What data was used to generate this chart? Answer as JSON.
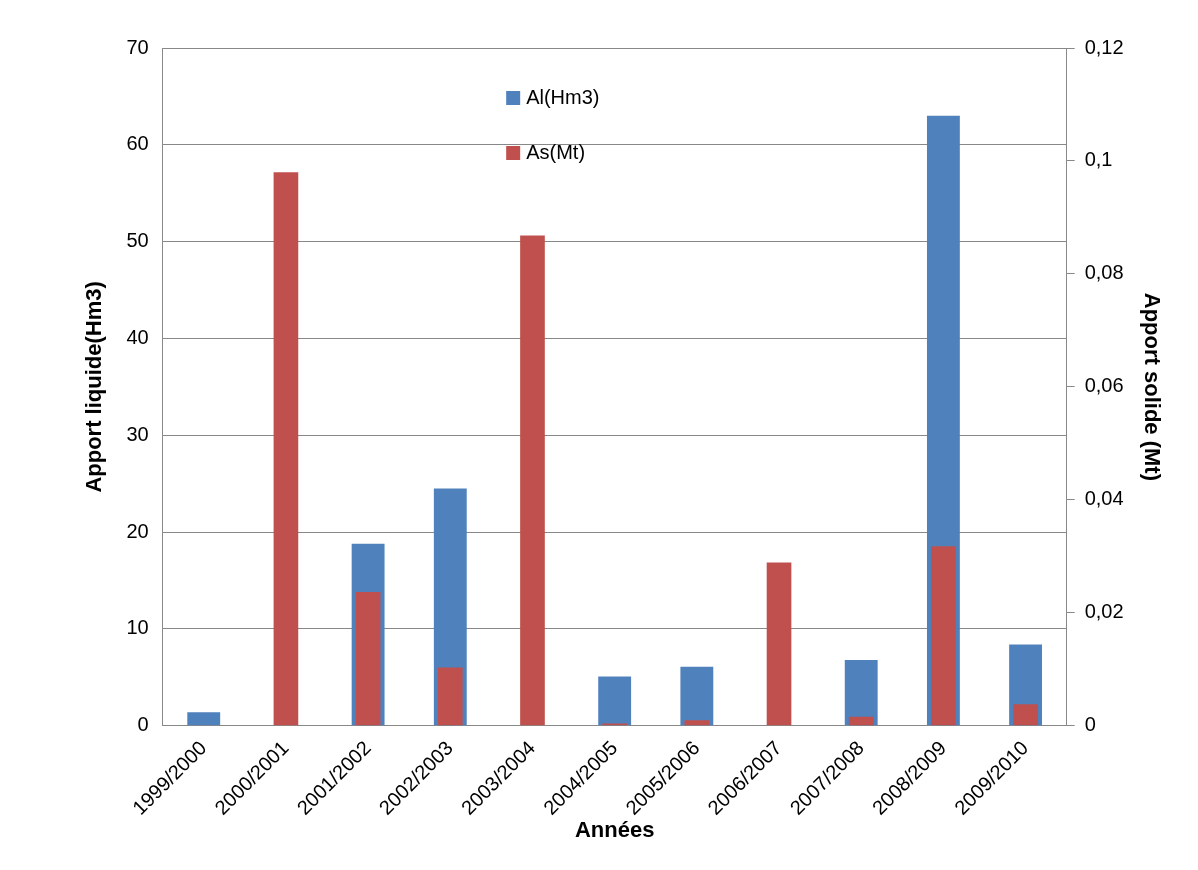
{
  "chart_data": {
    "type": "bar",
    "xlabel": "Années",
    "ylabel": "Apport liquide(Hm3)",
    "y2label": "Apport solide (Mt)",
    "categories": [
      "1999/2000",
      "2000/2001",
      "2001/2002",
      "2002/2003",
      "2003/2004",
      "2004/2005",
      "2005/2006",
      "2006/2007",
      "2007/2008",
      "2008/2009",
      "2009/2010"
    ],
    "series": [
      {
        "name": "Al(Hm3)",
        "color": "#4f81bd",
        "values": [
          1.4,
          null,
          18.8,
          24.5,
          null,
          5.1,
          6.1,
          null,
          6.8,
          63.0,
          8.4
        ]
      },
      {
        "name": "As(Mt)",
        "color": "#c0504d",
        "axis": "y2",
        "values": [
          0,
          0.098,
          0.0237,
          0.0103,
          0.0868,
          0.0004,
          0.001,
          0.0289,
          0.0016,
          0.0318,
          0.0038
        ]
      }
    ],
    "ylim": [
      0,
      70
    ],
    "yticks": [
      0,
      10,
      20,
      30,
      40,
      50,
      60,
      70
    ],
    "y2lim": [
      0,
      0.12
    ],
    "y2ticks": [
      {
        "value": 0,
        "label": "0"
      },
      {
        "value": 0.02,
        "label": "0,02"
      },
      {
        "value": 0.04,
        "label": "0,04"
      },
      {
        "value": 0.06,
        "label": "0,06"
      },
      {
        "value": 0.08,
        "label": "0,08"
      },
      {
        "value": 0.1,
        "label": "0,1"
      },
      {
        "value": 0.12,
        "label": "0,12"
      }
    ],
    "grid": "y",
    "legend": "top"
  }
}
